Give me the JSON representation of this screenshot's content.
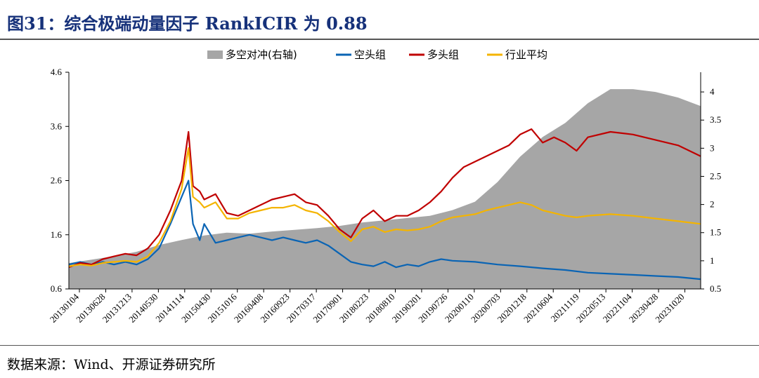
{
  "page": {
    "title": "图31：综合极端动量因子 RankICIR 为 0.88",
    "source": "数据来源：Wind、开源证券研究所"
  },
  "chart_data": {
    "type": "line",
    "title": "",
    "legend_position": "top",
    "grid": false,
    "x_tick_labels": [
      "20130104",
      "20130628",
      "20131213",
      "20140530",
      "20141114",
      "20150430",
      "20151016",
      "20160408",
      "20160923",
      "20170317",
      "20170901",
      "20180223",
      "20180810",
      "20190201",
      "20190726",
      "20200110",
      "20200703",
      "20201218",
      "20210604",
      "20211119",
      "20220513",
      "20221104",
      "20230428",
      "20231020"
    ],
    "y_left": {
      "ticks": [
        0.6,
        1.6,
        2.6,
        3.6,
        4.6
      ],
      "range": [
        0.6,
        4.6
      ]
    },
    "y_right": {
      "ticks": [
        0.5,
        1,
        1.5,
        2,
        2.5,
        3,
        3.5,
        4
      ],
      "range": [
        0.5,
        4.35
      ]
    },
    "series": [
      {
        "name": "多空对冲(右轴)",
        "type": "area",
        "axis": "right",
        "color": "#a6a6a6",
        "points": [
          [
            0,
            0.96
          ],
          [
            1,
            1.02
          ],
          [
            2,
            1.08
          ],
          [
            3,
            1.16
          ],
          [
            4,
            1.28
          ],
          [
            5,
            1.37
          ],
          [
            6,
            1.45
          ],
          [
            7,
            1.5
          ],
          [
            8,
            1.48
          ],
          [
            9,
            1.52
          ],
          [
            10,
            1.55
          ],
          [
            11,
            1.58
          ],
          [
            12,
            1.62
          ],
          [
            13,
            1.68
          ],
          [
            14,
            1.72
          ],
          [
            15,
            1.76
          ],
          [
            16,
            1.8
          ],
          [
            17,
            1.9
          ],
          [
            18,
            2.05
          ],
          [
            19,
            2.4
          ],
          [
            20,
            2.85
          ],
          [
            21,
            3.2
          ],
          [
            22,
            3.45
          ],
          [
            23,
            3.8
          ],
          [
            24,
            4.05
          ],
          [
            25,
            4.05
          ],
          [
            26,
            4.0
          ],
          [
            27,
            3.9
          ],
          [
            28,
            3.75
          ]
        ]
      },
      {
        "name": "空头组",
        "type": "line",
        "axis": "left",
        "color": "#0a64b4",
        "points": [
          [
            0,
            1.05
          ],
          [
            0.5,
            1.1
          ],
          [
            1,
            1.05
          ],
          [
            1.5,
            1.1
          ],
          [
            2,
            1.05
          ],
          [
            2.5,
            1.1
          ],
          [
            3,
            1.05
          ],
          [
            3.5,
            1.15
          ],
          [
            4,
            1.35
          ],
          [
            4.5,
            1.8
          ],
          [
            5,
            2.3
          ],
          [
            5.3,
            2.6
          ],
          [
            5.5,
            1.8
          ],
          [
            5.8,
            1.5
          ],
          [
            6,
            1.8
          ],
          [
            6.5,
            1.45
          ],
          [
            7,
            1.5
          ],
          [
            7.5,
            1.55
          ],
          [
            8,
            1.6
          ],
          [
            8.5,
            1.55
          ],
          [
            9,
            1.5
          ],
          [
            9.5,
            1.55
          ],
          [
            10,
            1.5
          ],
          [
            10.5,
            1.45
          ],
          [
            11,
            1.5
          ],
          [
            11.5,
            1.4
          ],
          [
            12,
            1.25
          ],
          [
            12.5,
            1.1
          ],
          [
            13,
            1.05
          ],
          [
            13.5,
            1.02
          ],
          [
            14,
            1.1
          ],
          [
            14.5,
            1.0
          ],
          [
            15,
            1.05
          ],
          [
            15.5,
            1.02
          ],
          [
            16,
            1.1
          ],
          [
            16.5,
            1.15
          ],
          [
            17,
            1.12
          ],
          [
            18,
            1.1
          ],
          [
            19,
            1.05
          ],
          [
            20,
            1.02
          ],
          [
            21,
            0.98
          ],
          [
            22,
            0.95
          ],
          [
            23,
            0.9
          ],
          [
            24,
            0.88
          ],
          [
            25,
            0.86
          ],
          [
            26,
            0.84
          ],
          [
            27,
            0.82
          ],
          [
            28,
            0.78
          ]
        ]
      },
      {
        "name": "多头组",
        "type": "line",
        "axis": "left",
        "color": "#c00000",
        "points": [
          [
            0,
            1.0
          ],
          [
            0.5,
            1.08
          ],
          [
            1,
            1.05
          ],
          [
            1.5,
            1.15
          ],
          [
            2,
            1.2
          ],
          [
            2.5,
            1.25
          ],
          [
            3,
            1.22
          ],
          [
            3.5,
            1.35
          ],
          [
            4,
            1.6
          ],
          [
            4.5,
            2.05
          ],
          [
            5,
            2.6
          ],
          [
            5.3,
            3.5
          ],
          [
            5.5,
            2.5
          ],
          [
            5.8,
            2.4
          ],
          [
            6,
            2.25
          ],
          [
            6.5,
            2.35
          ],
          [
            7,
            2.0
          ],
          [
            7.5,
            1.95
          ],
          [
            8,
            2.05
          ],
          [
            8.5,
            2.15
          ],
          [
            9,
            2.25
          ],
          [
            9.5,
            2.3
          ],
          [
            10,
            2.35
          ],
          [
            10.5,
            2.2
          ],
          [
            11,
            2.15
          ],
          [
            11.5,
            1.95
          ],
          [
            12,
            1.7
          ],
          [
            12.5,
            1.55
          ],
          [
            13,
            1.9
          ],
          [
            13.5,
            2.05
          ],
          [
            14,
            1.85
          ],
          [
            14.5,
            1.95
          ],
          [
            15,
            1.95
          ],
          [
            15.5,
            2.05
          ],
          [
            16,
            2.2
          ],
          [
            16.5,
            2.4
          ],
          [
            17,
            2.65
          ],
          [
            17.5,
            2.85
          ],
          [
            18,
            2.95
          ],
          [
            18.5,
            3.05
          ],
          [
            19,
            3.15
          ],
          [
            19.5,
            3.25
          ],
          [
            20,
            3.45
          ],
          [
            20.5,
            3.55
          ],
          [
            21,
            3.3
          ],
          [
            21.5,
            3.4
          ],
          [
            22,
            3.3
          ],
          [
            22.5,
            3.15
          ],
          [
            23,
            3.4
          ],
          [
            24,
            3.5
          ],
          [
            25,
            3.45
          ],
          [
            26,
            3.35
          ],
          [
            27,
            3.25
          ],
          [
            28,
            3.05
          ]
        ]
      },
      {
        "name": "行业平均",
        "type": "line",
        "axis": "left",
        "color": "#f4b400",
        "points": [
          [
            0,
            1.02
          ],
          [
            0.5,
            1.05
          ],
          [
            1,
            1.03
          ],
          [
            1.5,
            1.08
          ],
          [
            2,
            1.1
          ],
          [
            2.5,
            1.12
          ],
          [
            3,
            1.1
          ],
          [
            3.5,
            1.2
          ],
          [
            4,
            1.45
          ],
          [
            4.5,
            1.85
          ],
          [
            5,
            2.45
          ],
          [
            5.3,
            3.2
          ],
          [
            5.5,
            2.3
          ],
          [
            5.8,
            2.2
          ],
          [
            6,
            2.1
          ],
          [
            6.5,
            2.2
          ],
          [
            7,
            1.9
          ],
          [
            7.5,
            1.9
          ],
          [
            8,
            2.0
          ],
          [
            8.5,
            2.05
          ],
          [
            9,
            2.1
          ],
          [
            9.5,
            2.1
          ],
          [
            10,
            2.15
          ],
          [
            10.5,
            2.05
          ],
          [
            11,
            2.0
          ],
          [
            11.5,
            1.85
          ],
          [
            12,
            1.65
          ],
          [
            12.5,
            1.48
          ],
          [
            13,
            1.7
          ],
          [
            13.5,
            1.75
          ],
          [
            14,
            1.65
          ],
          [
            14.5,
            1.7
          ],
          [
            15,
            1.68
          ],
          [
            15.5,
            1.7
          ],
          [
            16,
            1.75
          ],
          [
            16.5,
            1.85
          ],
          [
            17,
            1.92
          ],
          [
            17.5,
            1.95
          ],
          [
            18,
            1.98
          ],
          [
            18.5,
            2.05
          ],
          [
            19,
            2.1
          ],
          [
            19.5,
            2.15
          ],
          [
            20,
            2.2
          ],
          [
            20.5,
            2.15
          ],
          [
            21,
            2.05
          ],
          [
            21.5,
            2.0
          ],
          [
            22,
            1.95
          ],
          [
            22.5,
            1.92
          ],
          [
            23,
            1.95
          ],
          [
            24,
            1.98
          ],
          [
            25,
            1.95
          ],
          [
            26,
            1.9
          ],
          [
            27,
            1.85
          ],
          [
            28,
            1.8
          ]
        ]
      }
    ]
  }
}
